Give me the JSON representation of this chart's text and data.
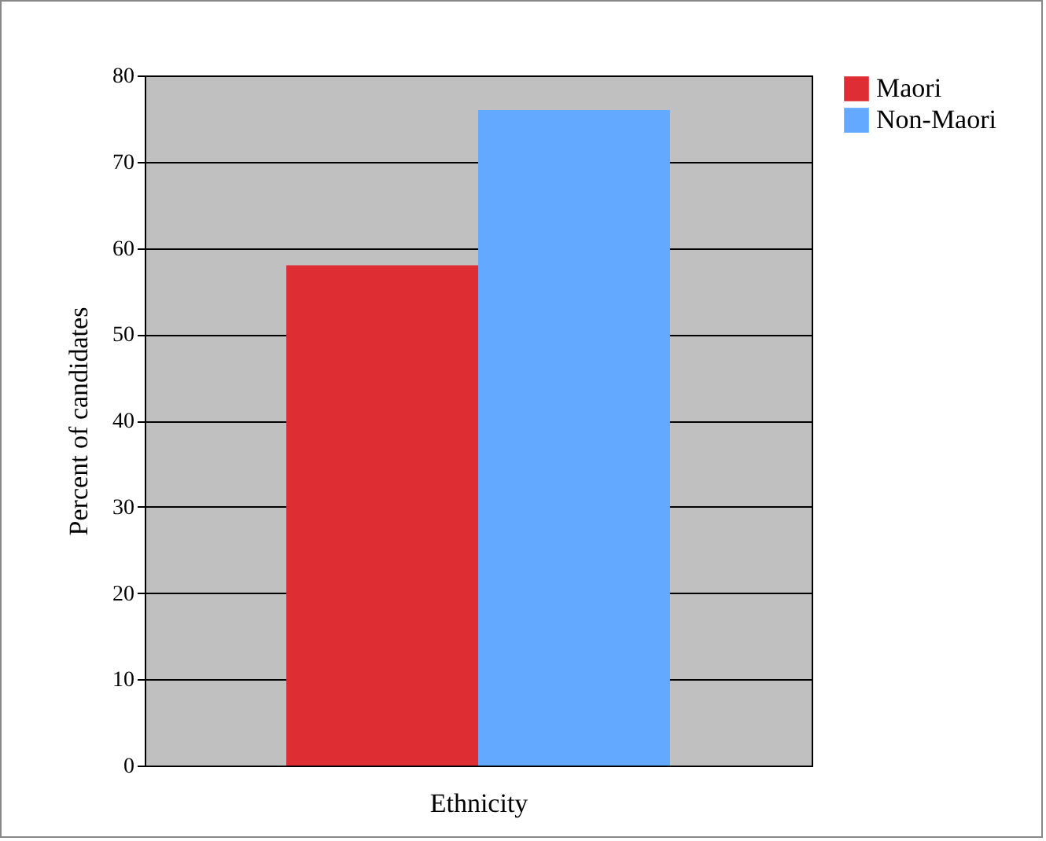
{
  "chart_data": {
    "type": "bar",
    "xlabel": "Ethnicity",
    "ylabel": "Percent of candidates",
    "categories": [
      null
    ],
    "series": [
      {
        "name": "Maori",
        "color": "#df2e33",
        "values": [
          58
        ]
      },
      {
        "name": "Non-Maori",
        "color": "#62a9ff",
        "values": [
          76
        ]
      }
    ],
    "ylim": [
      0,
      80
    ],
    "yticks": [
      0,
      10,
      20,
      30,
      40,
      50,
      60,
      70,
      80
    ],
    "grid": "y",
    "legend": "right"
  }
}
